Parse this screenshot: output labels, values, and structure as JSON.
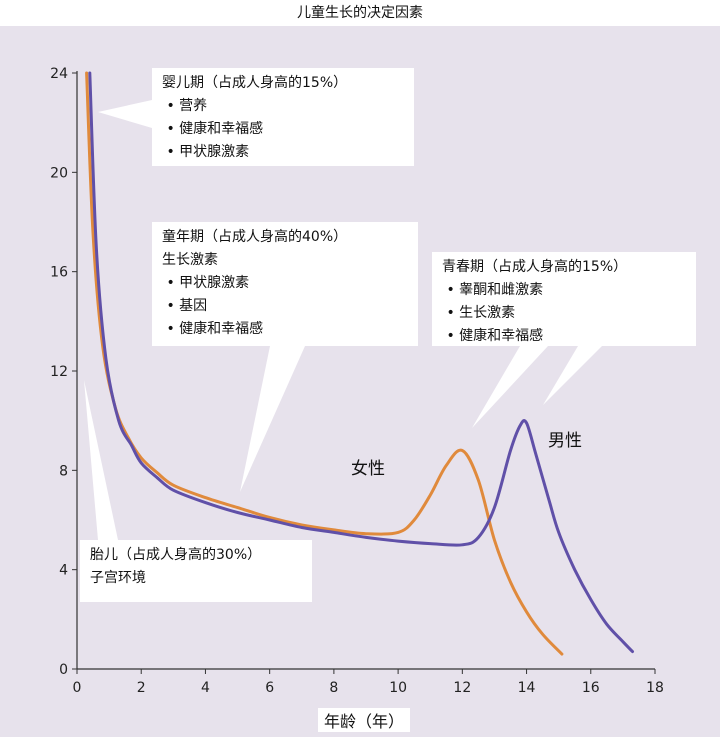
{
  "title": "儿童生长的决定因素",
  "chart_data": {
    "type": "line",
    "title": "儿童生长的决定因素",
    "xlabel": "年龄（年）",
    "ylabel": "",
    "xlim": [
      0,
      18
    ],
    "ylim": [
      0,
      24
    ],
    "xticks": [
      "0",
      "2",
      "4",
      "6",
      "8",
      "10",
      "12",
      "14",
      "16",
      "18"
    ],
    "yticks": [
      "0",
      "4",
      "8",
      "12",
      "16",
      "20",
      "24"
    ],
    "series": [
      {
        "name": "女性",
        "color": "#e08a3c",
        "x": [
          0.3,
          0.5,
          0.8,
          1.2,
          1.6,
          2,
          2.5,
          3,
          4,
          5,
          6,
          7,
          8,
          9,
          10,
          10.5,
          11,
          11.5,
          12,
          12.5,
          13,
          13.5,
          14,
          14.5,
          15.1
        ],
        "y": [
          24,
          17.5,
          13,
          10.5,
          9.3,
          8.5,
          7.9,
          7.4,
          6.9,
          6.5,
          6.1,
          5.8,
          5.6,
          5.45,
          5.5,
          6.0,
          7.0,
          8.2,
          8.8,
          7.6,
          5.2,
          3.5,
          2.3,
          1.4,
          0.6
        ]
      },
      {
        "name": "男性",
        "color": "#6050a8",
        "x": [
          0.4,
          0.6,
          0.9,
          1.3,
          1.7,
          2,
          2.5,
          3,
          4,
          5,
          6,
          7,
          8,
          9,
          10,
          11,
          12,
          12.5,
          13,
          13.5,
          13.8,
          14,
          14.3,
          14.7,
          15,
          15.5,
          16,
          16.5,
          17,
          17.3
        ],
        "y": [
          24,
          17,
          12.5,
          10,
          9,
          8.3,
          7.7,
          7.2,
          6.7,
          6.3,
          6.0,
          5.7,
          5.5,
          5.3,
          5.15,
          5.05,
          5.0,
          5.3,
          6.5,
          8.8,
          9.8,
          9.9,
          8.6,
          6.8,
          5.5,
          4.0,
          2.8,
          1.8,
          1.1,
          0.7
        ]
      }
    ],
    "annotations": [
      {
        "heading": "婴儿期（占成人身高的15%）",
        "items": [
          "营养",
          "健康和幸福感",
          "甲状腺激素"
        ]
      },
      {
        "heading": "童年期（占成人身高的40%）",
        "sub": "生长激素",
        "items": [
          "甲状腺激素",
          "基因",
          "健康和幸福感"
        ]
      },
      {
        "heading": "青春期（占成人身高的15%）",
        "items": [
          "睾酮和雌激素",
          "生长激素",
          "健康和幸福感"
        ]
      },
      {
        "heading": "胎儿（占成人身高的30%）",
        "sub": "子宫环境",
        "items": []
      }
    ],
    "grid": false,
    "legend": "none"
  },
  "callouts": {
    "infancy": {
      "heading": "婴儿期（占成人身高的15%）",
      "items": [
        "营养",
        "健康和幸福感",
        "甲状腺激素"
      ]
    },
    "childhood": {
      "heading": "童年期（占成人身高的40%）",
      "sub": "生长激素",
      "items": [
        "甲状腺激素",
        "基因",
        "健康和幸福感"
      ]
    },
    "puberty": {
      "heading": "青春期（占成人身高的15%）",
      "items": [
        "睾酮和雌激素",
        "生长激素",
        "健康和幸福感"
      ]
    },
    "fetal": {
      "heading": "胎儿（占成人身高的30%）",
      "sub": "子宫环境"
    }
  },
  "bullet": "•",
  "x_axis_label": "年龄（年）",
  "series_labels": {
    "female": "女性",
    "male": "男性"
  }
}
